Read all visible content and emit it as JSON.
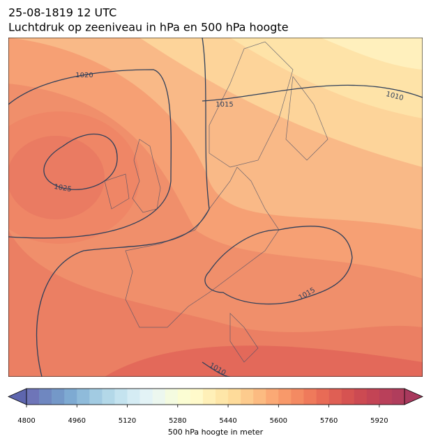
{
  "header": {
    "date": "25-08-1819 12 UTC",
    "title": "Luchtdruk op zeeniveau in hPa en 500 hPa hoogte"
  },
  "map": {
    "isobar_labels": [
      1020,
      1015,
      1010,
      1025,
      1015,
      1010
    ]
  },
  "colorbar": {
    "lim": [
      4800,
      6000
    ],
    "ticks": [
      4800,
      4960,
      5120,
      5280,
      5440,
      5600,
      5760,
      5920
    ],
    "label": "500 hPa hoogte in meter",
    "colors": [
      "#6e75b8",
      "#6f87c0",
      "#7498c8",
      "#7eaad2",
      "#8fbbda",
      "#a2cbe2",
      "#b3d8e8",
      "#c4e3ef",
      "#d5ecf4",
      "#e3f3f6",
      "#ecf7ef",
      "#f4fbe0",
      "#fbfdd3",
      "#fffacb",
      "#fff0b8",
      "#fee6a8",
      "#fedb9a",
      "#fdcb8d",
      "#fcbb81",
      "#fba975",
      "#f8996a",
      "#f48a62",
      "#ef7a5b",
      "#e86b56",
      "#df5f54",
      "#d65351",
      "#cc4a52",
      "#c34455",
      "#b9405a",
      "#b03d5c"
    ]
  }
}
